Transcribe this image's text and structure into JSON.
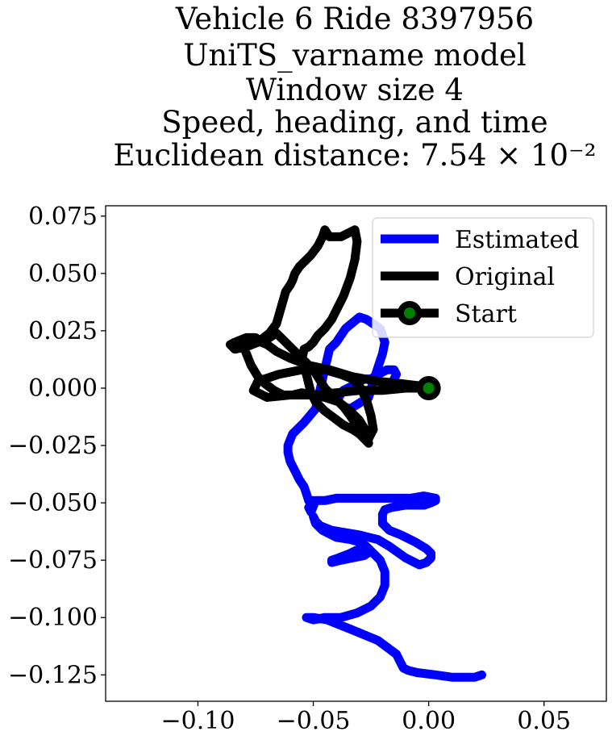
{
  "chart_data": {
    "type": "line",
    "title_lines": [
      "Vehicle 6 Ride 8397956",
      "UniTS_varname model",
      "Window size 4",
      "Speed, heading, and time",
      "Euclidean distance: 7.54 × 10⁻²"
    ],
    "xlabel": "",
    "ylabel": "",
    "xlim": [
      -0.14,
      0.077
    ],
    "ylim": [
      -0.1365,
      0.0795
    ],
    "x_ticks": [
      -0.1,
      -0.05,
      0.0,
      0.05
    ],
    "x_tick_labels": [
      "−0.10",
      "−0.05",
      "0.00",
      "0.05"
    ],
    "y_ticks": [
      0.075,
      0.05,
      0.025,
      0.0,
      -0.025,
      -0.05,
      -0.075,
      -0.1,
      -0.125
    ],
    "y_tick_labels": [
      "0.075",
      "0.050",
      "0.025",
      "0.000",
      "−0.025",
      "−0.050",
      "−0.075",
      "−0.100",
      "−0.125"
    ],
    "grid": false,
    "legend_position": "top-right",
    "series": [
      {
        "name": "Estimated",
        "color": "#0000ff",
        "x": [
          0.0,
          -0.008,
          -0.014,
          -0.015,
          -0.014,
          -0.015,
          -0.018,
          -0.022,
          -0.025,
          -0.027,
          -0.031,
          -0.033,
          -0.037,
          -0.039,
          -0.039,
          -0.037,
          -0.034,
          -0.026,
          -0.024,
          -0.022,
          -0.02,
          -0.019,
          -0.021,
          -0.027,
          -0.03,
          -0.036,
          -0.04,
          -0.043,
          -0.049,
          -0.054,
          -0.059,
          -0.061,
          -0.061,
          -0.06,
          -0.058,
          -0.056,
          -0.054,
          -0.053,
          -0.052,
          -0.05,
          -0.051,
          -0.052,
          -0.051,
          -0.049,
          -0.045,
          -0.04,
          -0.032,
          -0.02,
          -0.008,
          -0.002,
          0.003,
          0.003,
          0.001,
          -0.002,
          -0.006,
          -0.01,
          -0.016,
          -0.019,
          -0.02,
          -0.02,
          -0.017,
          -0.012,
          -0.006,
          -0.001,
          0.001,
          0.001,
          -0.001,
          -0.004,
          -0.01,
          -0.017,
          -0.022,
          -0.026,
          -0.03,
          -0.036,
          -0.042,
          -0.047,
          -0.049,
          -0.05,
          -0.049,
          -0.046,
          -0.04,
          -0.034,
          -0.03,
          -0.027,
          -0.025,
          -0.028,
          -0.033,
          -0.038,
          -0.042,
          -0.042,
          -0.039,
          -0.034,
          -0.03,
          -0.027,
          -0.025,
          -0.021,
          -0.019,
          -0.019,
          -0.021,
          -0.025,
          -0.031,
          -0.038,
          -0.045,
          -0.05,
          -0.053,
          -0.05,
          -0.044,
          -0.034,
          -0.022,
          -0.014,
          -0.012,
          -0.011,
          -0.009,
          -0.005,
          0.003,
          0.01,
          0.016,
          0.02,
          0.023
        ],
        "y": [
          0.001,
          0.001,
          0.002,
          0.004,
          0.006,
          0.008,
          0.008,
          0.006,
          0.004,
          0.004,
          0.003,
          0.001,
          -0.001,
          -0.004,
          -0.006,
          -0.008,
          -0.009,
          -0.004,
          0.003,
          0.009,
          0.015,
          0.02,
          0.026,
          0.03,
          0.031,
          0.026,
          0.02,
          0.017,
          -0.009,
          -0.015,
          -0.02,
          -0.025,
          -0.028,
          -0.032,
          -0.036,
          -0.04,
          -0.043,
          -0.046,
          -0.049,
          -0.049,
          -0.051,
          -0.052,
          -0.054,
          -0.049,
          -0.049,
          -0.048,
          -0.048,
          -0.048,
          -0.048,
          -0.047,
          -0.048,
          -0.049,
          -0.05,
          -0.051,
          -0.051,
          -0.051,
          -0.052,
          -0.053,
          -0.055,
          -0.059,
          -0.062,
          -0.064,
          -0.067,
          -0.07,
          -0.072,
          -0.074,
          -0.076,
          -0.077,
          -0.074,
          -0.069,
          -0.066,
          -0.065,
          -0.064,
          -0.063,
          -0.062,
          -0.06,
          -0.058,
          -0.056,
          -0.059,
          -0.062,
          -0.065,
          -0.066,
          -0.067,
          -0.069,
          -0.071,
          -0.073,
          -0.074,
          -0.075,
          -0.076,
          -0.075,
          -0.074,
          -0.072,
          -0.07,
          -0.069,
          -0.071,
          -0.075,
          -0.08,
          -0.086,
          -0.091,
          -0.095,
          -0.098,
          -0.1,
          -0.1,
          -0.101,
          -0.1,
          -0.1,
          -0.101,
          -0.105,
          -0.11,
          -0.116,
          -0.12,
          -0.122,
          -0.123,
          -0.124,
          -0.125,
          -0.126,
          -0.126,
          -0.126,
          -0.125
        ]
      },
      {
        "name": "Original",
        "color": "#000000",
        "x": [
          0.0,
          -0.01,
          -0.02,
          -0.03,
          -0.04,
          -0.05,
          -0.06,
          -0.07,
          -0.076,
          -0.074,
          -0.065,
          -0.055,
          -0.045,
          -0.038,
          -0.033,
          -0.03,
          -0.027,
          -0.025,
          -0.024,
          -0.026,
          -0.03,
          -0.034,
          -0.037,
          -0.04,
          -0.045,
          -0.05,
          -0.058,
          -0.066,
          -0.072,
          -0.075,
          -0.079,
          -0.084,
          -0.086,
          -0.084,
          -0.079,
          -0.074,
          -0.069,
          -0.066,
          -0.064,
          -0.062,
          -0.06,
          -0.059,
          -0.058,
          -0.056,
          -0.054,
          -0.051,
          -0.048,
          -0.046,
          -0.045,
          -0.043,
          -0.038,
          -0.034,
          -0.032,
          -0.031,
          -0.032,
          -0.034,
          -0.037,
          -0.04,
          -0.042,
          -0.045,
          -0.048,
          -0.05,
          -0.052,
          -0.054,
          -0.055,
          -0.053,
          -0.051,
          -0.049,
          -0.047,
          -0.045,
          -0.041,
          -0.037,
          -0.033,
          -0.03,
          -0.028,
          -0.026,
          -0.027,
          -0.03,
          -0.034,
          -0.039,
          -0.045,
          -0.05,
          -0.055,
          -0.059,
          -0.063,
          -0.067,
          -0.071,
          -0.074,
          -0.077,
          -0.079,
          -0.081,
          -0.079,
          -0.075,
          -0.07,
          -0.066,
          -0.06,
          -0.052,
          -0.043,
          -0.033,
          -0.022,
          -0.012,
          -0.004,
          0.0
        ],
        "y": [
          0.0,
          0.0,
          -0.001,
          -0.001,
          -0.002,
          -0.003,
          -0.003,
          -0.004,
          -0.001,
          0.003,
          0.006,
          0.008,
          0.008,
          0.006,
          0.004,
          0.001,
          -0.005,
          -0.012,
          -0.018,
          -0.022,
          -0.018,
          -0.012,
          -0.008,
          -0.005,
          0.0,
          0.008,
          0.016,
          0.024,
          0.02,
          0.022,
          0.022,
          0.02,
          0.019,
          0.017,
          0.018,
          0.02,
          0.024,
          0.028,
          0.035,
          0.042,
          0.045,
          0.047,
          0.05,
          0.053,
          0.055,
          0.058,
          0.062,
          0.066,
          0.069,
          0.066,
          0.066,
          0.068,
          0.069,
          0.064,
          0.056,
          0.048,
          0.04,
          0.034,
          0.03,
          0.026,
          0.023,
          0.02,
          0.018,
          0.017,
          0.012,
          0.006,
          -0.002,
          -0.006,
          -0.008,
          -0.01,
          -0.013,
          -0.016,
          -0.018,
          -0.02,
          -0.022,
          -0.024,
          -0.019,
          -0.014,
          -0.01,
          -0.006,
          -0.004,
          -0.003,
          -0.002,
          -0.003,
          -0.003,
          -0.001,
          0.002,
          0.005,
          0.01,
          0.015,
          0.02,
          0.022,
          0.021,
          0.019,
          0.016,
          0.013,
          0.01,
          0.008,
          0.005,
          0.003,
          0.002,
          0.001,
          0.0
        ]
      }
    ],
    "start_marker": {
      "name": "Start",
      "x": 0.0,
      "y": 0.0,
      "edge_color": "#000000",
      "face_color": "#008000"
    },
    "legend": {
      "entries": [
        "Estimated",
        "Original",
        "Start"
      ]
    }
  }
}
